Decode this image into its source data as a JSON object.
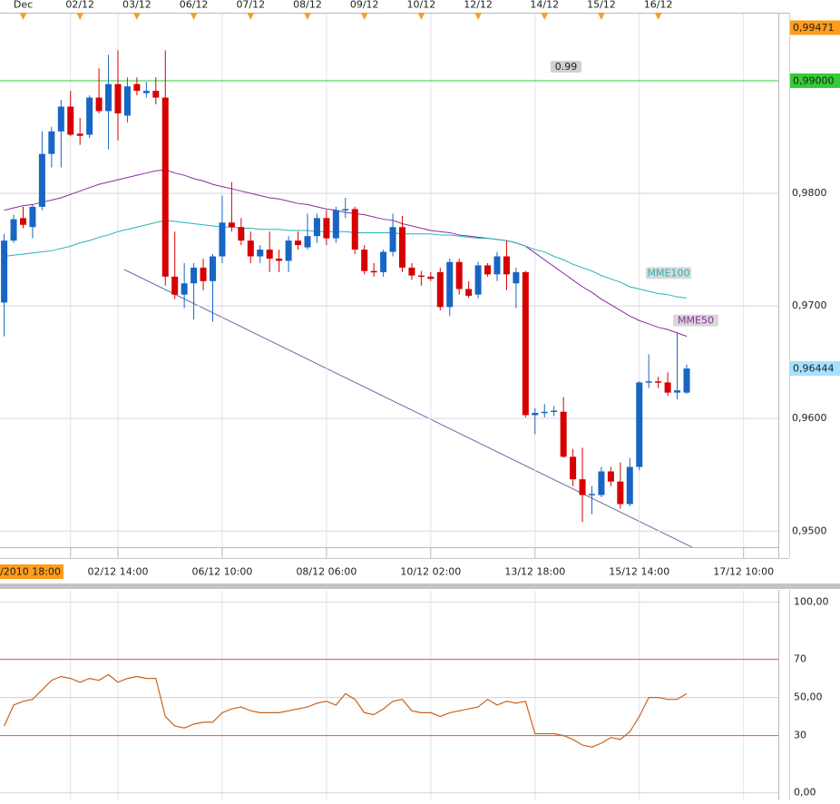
{
  "chart_data": [
    {
      "type": "candlestick",
      "categories": [
        null,
        null,
        null,
        null,
        null,
        null,
        null,
        "/2010 18:00",
        null,
        null,
        null,
        null,
        "02/12 14:00",
        null,
        null,
        null,
        null,
        null,
        null,
        null,
        null,
        null,
        null,
        "06/12 10:00",
        null,
        null,
        null,
        null,
        null,
        null,
        null,
        null,
        null,
        null,
        "08/12 06:00",
        null,
        null,
        null,
        null,
        null,
        null,
        null,
        null,
        null,
        null,
        "10/12 02:00",
        null,
        null,
        null,
        null,
        null,
        null,
        null,
        null,
        null,
        null,
        "13/12 18:00",
        null,
        null,
        null,
        null,
        null,
        null,
        null,
        null,
        null,
        null,
        "15/12 14:00",
        null,
        null,
        null,
        null,
        null,
        null,
        null,
        null,
        null,
        null,
        "17/12 10:00"
      ],
      "day_labels": [
        null,
        null,
        "Dec",
        null,
        null,
        null,
        null,
        null,
        "02/12",
        null,
        null,
        null,
        null,
        null,
        "03/12",
        null,
        null,
        null,
        null,
        null,
        "06/12",
        null,
        null,
        null,
        null,
        null,
        "07/12",
        null,
        null,
        null,
        null,
        null,
        "08/12",
        null,
        null,
        null,
        null,
        null,
        "09/12",
        null,
        null,
        null,
        null,
        null,
        "10/12",
        null,
        null,
        null,
        null,
        null,
        "12/12",
        null,
        null,
        null,
        null,
        null,
        null,
        "14/12",
        null,
        null,
        null,
        null,
        null,
        "15/12",
        null,
        null,
        null,
        null,
        null,
        "16/12",
        null,
        null,
        null,
        null,
        null,
        null,
        null,
        null,
        null
      ],
      "open": [
        0.9703,
        0.9758,
        0.9778,
        0.977,
        0.9788,
        0.9835,
        0.9855,
        0.9877,
        0.9853,
        0.9852,
        0.9885,
        0.9873,
        0.9897,
        0.9869,
        0.9897,
        0.9889,
        0.9891,
        0.9885,
        0.9726,
        0.971,
        0.972,
        0.9734,
        0.9722,
        0.9744,
        0.9774,
        0.977,
        0.9758,
        0.9744,
        0.975,
        0.9742,
        0.974,
        0.9758,
        0.9752,
        0.9762,
        0.9778,
        0.976,
        0.9785,
        0.9786,
        0.975,
        0.9731,
        0.973,
        0.9748,
        0.977,
        0.9734,
        0.9727,
        0.9726,
        0.973,
        0.9699,
        0.9739,
        0.9715,
        0.971,
        0.9736,
        0.9728,
        0.9744,
        0.972,
        0.973,
        0.9603,
        0.9605,
        0.9606,
        0.9606,
        0.9566,
        0.9546,
        0.9532,
        0.9532,
        0.9553,
        0.9544,
        0.9524,
        0.9557,
        0.9632,
        0.9633,
        0.9632,
        0.9623,
        0.9623,
        null,
        null,
        null,
        null,
        null,
        null
      ],
      "high": [
        0.9764,
        0.9781,
        0.9788,
        0.979,
        0.9855,
        0.9859,
        0.9883,
        0.9891,
        0.9867,
        0.9887,
        0.9911,
        0.9923,
        0.9927,
        0.9903,
        0.9903,
        0.9899,
        0.9903,
        0.9927,
        0.9766,
        0.9738,
        0.9738,
        0.9742,
        0.9746,
        0.9798,
        0.981,
        0.9778,
        0.9766,
        0.9754,
        0.9766,
        0.975,
        0.9762,
        0.9766,
        0.9782,
        0.9782,
        0.9785,
        0.9788,
        0.9796,
        0.9788,
        0.9754,
        0.9738,
        0.975,
        0.9782,
        0.978,
        0.9738,
        0.9731,
        0.973,
        0.9734,
        0.9742,
        0.9742,
        0.9722,
        0.9739,
        0.9738,
        0.9748,
        0.9758,
        0.9734,
        0.9731,
        0.9609,
        0.9613,
        0.9611,
        0.9619,
        0.9573,
        0.9574,
        0.954,
        0.9557,
        0.9557,
        0.9561,
        0.9565,
        0.9633,
        0.9657,
        0.9637,
        0.9641,
        0.9676,
        0.9648,
        null,
        null,
        null,
        null,
        null,
        null
      ],
      "low": [
        0.9673,
        0.9756,
        0.9769,
        0.976,
        0.9785,
        0.9823,
        0.9823,
        0.9851,
        0.9843,
        0.9849,
        0.9871,
        0.9839,
        0.9847,
        0.9863,
        0.9887,
        0.9885,
        0.9879,
        0.9718,
        0.9706,
        0.9698,
        0.9688,
        0.9714,
        0.9686,
        0.9738,
        0.9766,
        0.9754,
        0.9738,
        0.9738,
        0.973,
        0.973,
        0.973,
        0.975,
        0.975,
        0.9756,
        0.9754,
        0.9756,
        0.9778,
        0.9746,
        0.9728,
        0.9726,
        0.9726,
        0.9744,
        0.973,
        0.9723,
        0.9718,
        0.9722,
        0.9696,
        0.9691,
        0.971,
        0.9707,
        0.9707,
        0.9726,
        0.9722,
        0.9714,
        0.9698,
        0.9601,
        0.9586,
        0.9601,
        0.9602,
        0.9565,
        0.954,
        0.9508,
        0.9515,
        0.953,
        0.954,
        0.952,
        0.9522,
        0.9554,
        0.9627,
        0.9627,
        0.962,
        0.9617,
        0.9622,
        null,
        null,
        null,
        null,
        null,
        null
      ],
      "close": [
        0.9758,
        0.9777,
        0.9772,
        0.9788,
        0.9835,
        0.9855,
        0.9877,
        0.9852,
        0.9851,
        0.9885,
        0.9873,
        0.9897,
        0.9871,
        0.9895,
        0.9891,
        0.9891,
        0.9885,
        0.9726,
        0.971,
        0.972,
        0.9734,
        0.9722,
        0.9744,
        0.9774,
        0.977,
        0.9758,
        0.9744,
        0.975,
        0.9742,
        0.974,
        0.9758,
        0.9754,
        0.9762,
        0.9778,
        0.976,
        0.9785,
        0.9786,
        0.975,
        0.9731,
        0.973,
        0.9748,
        0.977,
        0.9734,
        0.9727,
        0.9726,
        0.9724,
        0.9699,
        0.9739,
        0.9715,
        0.9709,
        0.9736,
        0.9728,
        0.9744,
        0.9728,
        0.973,
        0.9603,
        0.9605,
        0.9606,
        0.9607,
        0.9566,
        0.9546,
        0.9532,
        0.9533,
        0.9553,
        0.9544,
        0.9524,
        0.9557,
        0.9632,
        0.9633,
        0.9632,
        0.9623,
        0.9625,
        0.96444,
        null,
        null,
        null,
        null,
        null,
        null
      ],
      "up_color": "#1766c4",
      "down_color": "#d60000",
      "series": [
        {
          "name": "MME50",
          "color": "#8c2aa0",
          "values": [
            0.9785,
            0.9787,
            0.9789,
            0.979,
            0.9792,
            0.9794,
            0.9796,
            0.9799,
            0.9802,
            0.9805,
            0.9808,
            0.981,
            0.9812,
            0.9814,
            0.9816,
            0.9818,
            0.982,
            0.9821,
            0.9818,
            0.9816,
            0.9813,
            0.9811,
            0.9808,
            0.9806,
            0.9804,
            0.9802,
            0.98,
            0.9798,
            0.9796,
            0.9795,
            0.9793,
            0.9791,
            0.979,
            0.9788,
            0.9786,
            0.9785,
            0.9783,
            0.9782,
            0.9781,
            0.9779,
            0.9777,
            0.9776,
            0.9773,
            0.9771,
            0.9769,
            0.9767,
            0.9766,
            0.9765,
            0.9763,
            0.9762,
            0.9761,
            0.976,
            0.9759,
            0.9758,
            0.9756,
            0.9753,
            0.9747,
            0.9741,
            0.9735,
            0.9729,
            0.9723,
            0.9717,
            0.9712,
            0.9706,
            0.9701,
            0.9696,
            0.9691,
            0.9687,
            0.9684,
            0.9681,
            0.9679,
            0.9676,
            0.9673,
            null,
            null,
            null,
            null,
            null,
            null
          ]
        },
        {
          "name": "MME100",
          "color": "#27b3b3",
          "values": [
            0.9744,
            0.9745,
            0.9746,
            0.9747,
            0.9748,
            0.9749,
            0.9751,
            0.9753,
            0.9756,
            0.9758,
            0.9761,
            0.9763,
            0.9766,
            0.9768,
            0.977,
            0.9772,
            0.9774,
            0.9776,
            0.9775,
            0.9774,
            0.9773,
            0.9772,
            0.9771,
            0.977,
            0.977,
            0.9769,
            0.9769,
            0.9768,
            0.9768,
            0.9768,
            0.9767,
            0.9767,
            0.9767,
            0.9766,
            0.9766,
            0.9766,
            0.9766,
            0.9765,
            0.9765,
            0.9765,
            0.9765,
            0.9765,
            0.9764,
            0.9764,
            0.9764,
            0.9764,
            0.9763,
            0.9763,
            0.9762,
            0.9761,
            0.976,
            0.976,
            0.9759,
            0.9758,
            0.9756,
            0.9753,
            0.975,
            0.9748,
            0.9744,
            0.9741,
            0.9737,
            0.9734,
            0.9731,
            0.9727,
            0.9724,
            0.9721,
            0.9717,
            0.9715,
            0.9713,
            0.9711,
            0.971,
            0.9708,
            0.9707,
            null,
            null,
            null,
            null,
            null,
            null
          ]
        }
      ],
      "ylim": [
        0.94857,
        0.99596
      ],
      "yticks": [
        {
          "value": 0.95,
          "label": "0,9500"
        },
        {
          "value": 0.96,
          "label": "0,9600"
        },
        {
          "value": 0.97,
          "label": "0,9700"
        },
        {
          "value": 0.98,
          "label": "0,9800"
        }
      ],
      "hlines": [
        {
          "value": 0.99,
          "label": "0,99000",
          "note": "0.99",
          "color": "#33cc33"
        }
      ],
      "price_labels": [
        {
          "value": 0.99471,
          "label": "0,99471",
          "color": "#ff9c1a"
        },
        {
          "value": 0.96444,
          "label": "0,96444",
          "color": "#a6e0ff"
        }
      ],
      "grid": true
    },
    {
      "type": "line",
      "color": "#c8641e",
      "values": [
        35,
        46,
        48,
        49,
        54,
        59,
        61,
        60,
        58,
        60,
        59,
        62,
        58,
        60,
        61,
        60,
        60,
        40,
        35,
        34,
        36,
        37,
        37,
        42,
        44,
        45,
        43,
        42,
        42,
        42,
        43,
        44,
        45,
        47,
        48,
        46,
        52,
        49,
        42,
        41,
        44,
        48,
        49,
        43,
        42,
        42,
        40,
        42,
        43,
        44,
        45,
        49,
        46,
        48,
        47,
        48,
        31,
        31,
        31,
        30,
        28,
        25,
        24,
        26,
        29,
        28,
        32,
        40,
        50,
        50,
        49,
        49,
        52,
        null,
        null,
        null,
        null,
        null,
        null
      ],
      "ylim": [
        -4,
        106
      ],
      "yticks": [
        {
          "value": 0,
          "label": "0,00"
        },
        30,
        50,
        {
          "value": 50,
          "label": "50,00"
        },
        70,
        {
          "value": 100,
          "label": "100,00"
        }
      ],
      "levels": [
        30,
        70
      ],
      "level_color": "#e0553c",
      "grid": true
    }
  ]
}
